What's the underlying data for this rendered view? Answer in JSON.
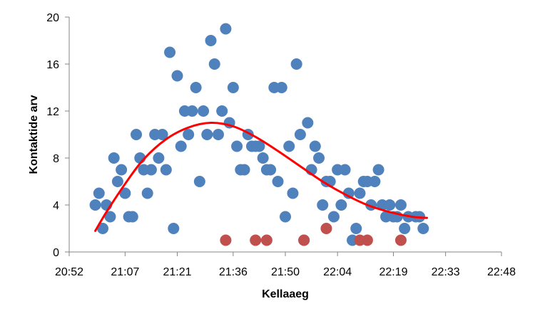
{
  "chart_data": {
    "type": "scatter",
    "xlabel": "Kellaaeg",
    "ylabel": "Kontaktide arv",
    "x_ticks": [
      "20:52",
      "21:07",
      "21:21",
      "21:36",
      "21:50",
      "22:04",
      "22:19",
      "22:33",
      "22:48"
    ],
    "y_ticks": [
      "0",
      "4",
      "8",
      "12",
      "16",
      "20"
    ],
    "xlim": [
      "20:52",
      "22:48"
    ],
    "ylim": [
      0,
      20
    ],
    "grid": false,
    "legend": "none",
    "series": [
      {
        "color": "#4F81BD",
        "points": [
          [
            "20:59",
            4
          ],
          [
            "21:00",
            5
          ],
          [
            "21:01",
            2
          ],
          [
            "21:02",
            4
          ],
          [
            "21:03",
            3
          ],
          [
            "21:04",
            8
          ],
          [
            "21:05",
            6
          ],
          [
            "21:06",
            7
          ],
          [
            "21:07",
            5
          ],
          [
            "21:08",
            3
          ],
          [
            "21:09",
            3
          ],
          [
            "21:10",
            10
          ],
          [
            "21:11",
            8
          ],
          [
            "21:12",
            7
          ],
          [
            "21:13",
            5
          ],
          [
            "21:14",
            7
          ],
          [
            "21:15",
            10
          ],
          [
            "21:16",
            8
          ],
          [
            "21:17",
            10
          ],
          [
            "21:18",
            7
          ],
          [
            "21:19",
            17
          ],
          [
            "21:20",
            2
          ],
          [
            "21:21",
            15
          ],
          [
            "21:22",
            9
          ],
          [
            "21:23",
            12
          ],
          [
            "21:24",
            10
          ],
          [
            "21:25",
            12
          ],
          [
            "21:26",
            14
          ],
          [
            "21:27",
            6
          ],
          [
            "21:28",
            12
          ],
          [
            "21:29",
            10
          ],
          [
            "21:30",
            18
          ],
          [
            "21:31",
            16
          ],
          [
            "21:32",
            10
          ],
          [
            "21:33",
            12
          ],
          [
            "21:34",
            19
          ],
          [
            "21:35",
            11
          ],
          [
            "21:36",
            14
          ],
          [
            "21:37",
            9
          ],
          [
            "21:38",
            7
          ],
          [
            "21:39",
            7
          ],
          [
            "21:40",
            10
          ],
          [
            "21:41",
            9
          ],
          [
            "21:42",
            9
          ],
          [
            "21:43",
            9
          ],
          [
            "21:44",
            8
          ],
          [
            "21:45",
            7
          ],
          [
            "21:46",
            7
          ],
          [
            "21:47",
            14
          ],
          [
            "21:48",
            6
          ],
          [
            "21:49",
            14
          ],
          [
            "21:50",
            3
          ],
          [
            "21:51",
            9
          ],
          [
            "21:52",
            5
          ],
          [
            "21:53",
            16
          ],
          [
            "21:54",
            10
          ],
          [
            "21:55",
            1
          ],
          [
            "21:56",
            11
          ],
          [
            "21:57",
            7
          ],
          [
            "21:58",
            9
          ],
          [
            "21:59",
            8
          ],
          [
            "22:00",
            4
          ],
          [
            "22:01",
            6
          ],
          [
            "22:02",
            6
          ],
          [
            "22:03",
            3
          ],
          [
            "22:04",
            7
          ],
          [
            "22:05",
            4
          ],
          [
            "22:06",
            7
          ],
          [
            "22:07",
            5
          ],
          [
            "22:08",
            1
          ],
          [
            "22:09",
            2
          ],
          [
            "22:10",
            5
          ],
          [
            "22:11",
            6
          ],
          [
            "22:12",
            6
          ],
          [
            "22:13",
            4
          ],
          [
            "22:14",
            6
          ],
          [
            "22:15",
            7
          ],
          [
            "22:16",
            4
          ],
          [
            "22:17",
            3
          ],
          [
            "22:18",
            4
          ],
          [
            "22:19",
            3
          ],
          [
            "22:20",
            3
          ],
          [
            "22:21",
            4
          ],
          [
            "22:22",
            2
          ],
          [
            "22:23",
            3
          ],
          [
            "22:25",
            3
          ],
          [
            "22:26",
            3
          ],
          [
            "22:27",
            2
          ]
        ]
      },
      {
        "color": "#C0504D",
        "points": [
          [
            "21:34",
            1
          ],
          [
            "21:42",
            1
          ],
          [
            "21:45",
            1
          ],
          [
            "21:55",
            1
          ],
          [
            "22:01",
            2
          ],
          [
            "22:10",
            1
          ],
          [
            "22:12",
            1
          ],
          [
            "22:21",
            1
          ]
        ]
      },
      {
        "type": "line",
        "color": "#FF0000",
        "points": [
          [
            "20:59",
            1.8
          ],
          [
            "21:02",
            3.4
          ],
          [
            "21:07",
            5.8
          ],
          [
            "21:12",
            7.9
          ],
          [
            "21:18",
            9.6
          ],
          [
            "21:24",
            10.6
          ],
          [
            "21:30",
            11.0
          ],
          [
            "21:36",
            10.7
          ],
          [
            "21:42",
            9.8
          ],
          [
            "21:48",
            8.6
          ],
          [
            "21:54",
            7.3
          ],
          [
            "22:00",
            6.0
          ],
          [
            "22:06",
            4.9
          ],
          [
            "22:12",
            4.0
          ],
          [
            "22:18",
            3.4
          ],
          [
            "22:24",
            3.0
          ],
          [
            "22:28",
            2.9
          ]
        ]
      }
    ]
  }
}
